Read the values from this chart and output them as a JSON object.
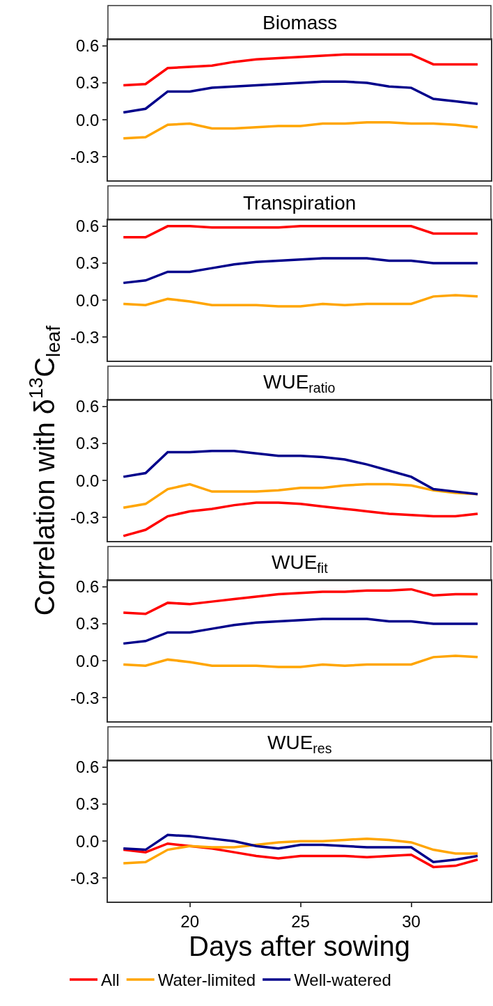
{
  "chart_data": [
    {
      "type": "line",
      "title": "Biomass",
      "x": [
        17,
        18,
        19,
        20,
        21,
        22,
        23,
        24,
        25,
        26,
        27,
        28,
        29,
        30,
        31,
        32,
        33
      ],
      "xlim": [
        16.3,
        33.6
      ],
      "ylim": [
        -0.49,
        0.65
      ],
      "yticks": [
        {
          "value": -0.3,
          "label": "-0.3"
        },
        {
          "value": 0,
          "label": "0.0"
        },
        {
          "value": 0.3,
          "label": "0.3"
        },
        {
          "value": 0.6,
          "label": "0.6"
        }
      ],
      "xticks": [
        20,
        25,
        30
      ],
      "tick_labels": "y",
      "grid": false,
      "legend": "bottom",
      "marker": "none",
      "line_style": "solid",
      "series": [
        {
          "name": "All",
          "color": "#ff0000",
          "values": [
            0.28,
            0.29,
            0.42,
            0.43,
            0.44,
            0.47,
            0.49,
            0.5,
            0.51,
            0.52,
            0.53,
            0.53,
            0.53,
            0.53,
            0.45,
            0.45,
            0.45
          ]
        },
        {
          "name": "Water-limited",
          "color": "#ffa500",
          "values": [
            -0.15,
            -0.14,
            -0.04,
            -0.03,
            -0.07,
            -0.07,
            -0.06,
            -0.05,
            -0.05,
            -0.03,
            -0.03,
            -0.02,
            -0.02,
            -0.03,
            -0.03,
            -0.04,
            -0.06
          ]
        },
        {
          "name": "Well-watered",
          "color": "#00008b",
          "values": [
            0.06,
            0.09,
            0.23,
            0.23,
            0.26,
            0.27,
            0.28,
            0.29,
            0.3,
            0.31,
            0.31,
            0.3,
            0.27,
            0.26,
            0.17,
            0.15,
            0.13
          ]
        }
      ]
    },
    {
      "type": "line",
      "title": "Transpiration",
      "x": [
        17,
        18,
        19,
        20,
        21,
        22,
        23,
        24,
        25,
        26,
        27,
        28,
        29,
        30,
        31,
        32,
        33
      ],
      "xlim": [
        16.3,
        33.6
      ],
      "ylim": [
        -0.49,
        0.65
      ],
      "yticks": [
        {
          "value": -0.3,
          "label": "-0.3"
        },
        {
          "value": 0,
          "label": "0.0"
        },
        {
          "value": 0.3,
          "label": "0.3"
        },
        {
          "value": 0.6,
          "label": "0.6"
        }
      ],
      "xticks": [
        20,
        25,
        30
      ],
      "tick_labels": "y",
      "grid": false,
      "legend": "bottom",
      "marker": "none",
      "line_style": "solid",
      "series": [
        {
          "name": "All",
          "color": "#ff0000",
          "values": [
            0.51,
            0.51,
            0.6,
            0.6,
            0.59,
            0.59,
            0.59,
            0.59,
            0.6,
            0.6,
            0.6,
            0.6,
            0.6,
            0.6,
            0.54,
            0.54,
            0.54
          ]
        },
        {
          "name": "Water-limited",
          "color": "#ffa500",
          "values": [
            -0.03,
            -0.04,
            0.01,
            -0.01,
            -0.04,
            -0.04,
            -0.04,
            -0.05,
            -0.05,
            -0.03,
            -0.04,
            -0.03,
            -0.03,
            -0.03,
            0.03,
            0.04,
            0.03
          ]
        },
        {
          "name": "Well-watered",
          "color": "#00008b",
          "values": [
            0.14,
            0.16,
            0.23,
            0.23,
            0.26,
            0.29,
            0.31,
            0.32,
            0.33,
            0.34,
            0.34,
            0.34,
            0.32,
            0.32,
            0.3,
            0.3,
            0.3
          ]
        }
      ]
    },
    {
      "type": "line",
      "title": "WUE$_{ratio}$",
      "ylabel": "Correlation with δ$^{13}$C$_{leaf}$",
      "x": [
        17,
        18,
        19,
        20,
        21,
        22,
        23,
        24,
        25,
        26,
        27,
        28,
        29,
        30,
        31,
        32,
        33
      ],
      "xlim": [
        16.3,
        33.6
      ],
      "ylim": [
        -0.49,
        0.65
      ],
      "yticks": [
        {
          "value": -0.3,
          "label": "-0.3"
        },
        {
          "value": 0,
          "label": "0.0"
        },
        {
          "value": 0.3,
          "label": "0.3"
        },
        {
          "value": 0.6,
          "label": "0.6"
        }
      ],
      "xticks": [
        20,
        25,
        30
      ],
      "tick_labels": "y",
      "grid": false,
      "legend": "bottom",
      "marker": "none",
      "line_style": "solid",
      "series": [
        {
          "name": "All",
          "color": "#ff0000",
          "values": [
            -0.45,
            -0.4,
            -0.29,
            -0.25,
            -0.23,
            -0.2,
            -0.18,
            -0.18,
            -0.19,
            -0.21,
            -0.23,
            -0.25,
            -0.27,
            -0.28,
            -0.29,
            -0.29,
            -0.27
          ]
        },
        {
          "name": "Water-limited",
          "color": "#ffa500",
          "values": [
            -0.22,
            -0.19,
            -0.07,
            -0.03,
            -0.09,
            -0.09,
            -0.09,
            -0.08,
            -0.06,
            -0.06,
            -0.04,
            -0.03,
            -0.03,
            -0.04,
            -0.08,
            -0.1,
            -0.11
          ]
        },
        {
          "name": "Well-watered",
          "color": "#00008b",
          "values": [
            0.03,
            0.06,
            0.23,
            0.23,
            0.24,
            0.24,
            0.22,
            0.2,
            0.2,
            0.19,
            0.17,
            0.13,
            0.08,
            0.03,
            -0.07,
            -0.09,
            -0.11
          ]
        }
      ]
    },
    {
      "type": "line",
      "title": "WUE$_{fit}$",
      "x": [
        17,
        18,
        19,
        20,
        21,
        22,
        23,
        24,
        25,
        26,
        27,
        28,
        29,
        30,
        31,
        32,
        33
      ],
      "xlim": [
        16.3,
        33.6
      ],
      "ylim": [
        -0.49,
        0.65
      ],
      "yticks": [
        {
          "value": -0.3,
          "label": "-0.3"
        },
        {
          "value": 0,
          "label": "0.0"
        },
        {
          "value": 0.3,
          "label": "0.3"
        },
        {
          "value": 0.6,
          "label": "0.6"
        }
      ],
      "xticks": [
        20,
        25,
        30
      ],
      "tick_labels": "y",
      "grid": false,
      "legend": "bottom",
      "marker": "none",
      "line_style": "solid",
      "series": [
        {
          "name": "All",
          "color": "#ff0000",
          "values": [
            0.39,
            0.38,
            0.47,
            0.46,
            0.48,
            0.5,
            0.52,
            0.54,
            0.55,
            0.56,
            0.56,
            0.57,
            0.57,
            0.58,
            0.53,
            0.54,
            0.54
          ]
        },
        {
          "name": "Water-limited",
          "color": "#ffa500",
          "values": [
            -0.03,
            -0.04,
            0.01,
            -0.01,
            -0.04,
            -0.04,
            -0.04,
            -0.05,
            -0.05,
            -0.03,
            -0.04,
            -0.03,
            -0.03,
            -0.03,
            0.03,
            0.04,
            0.03
          ]
        },
        {
          "name": "Well-watered",
          "color": "#00008b",
          "values": [
            0.14,
            0.16,
            0.23,
            0.23,
            0.26,
            0.29,
            0.31,
            0.32,
            0.33,
            0.34,
            0.34,
            0.34,
            0.32,
            0.32,
            0.3,
            0.3,
            0.3
          ]
        }
      ]
    },
    {
      "type": "line",
      "title": "WUE$_{res}$",
      "xlabel": "Days after sowing",
      "x": [
        17,
        18,
        19,
        20,
        21,
        22,
        23,
        24,
        25,
        26,
        27,
        28,
        29,
        30,
        31,
        32,
        33
      ],
      "xlim": [
        16.3,
        33.6
      ],
      "ylim": [
        -0.49,
        0.65
      ],
      "yticks": [
        {
          "value": -0.3,
          "label": "-0.3"
        },
        {
          "value": 0,
          "label": "0.0"
        },
        {
          "value": 0.3,
          "label": "0.3"
        },
        {
          "value": 0.6,
          "label": "0.6"
        }
      ],
      "xticks": [
        20,
        25,
        30
      ],
      "grid": false,
      "legend": "bottom",
      "marker": "none",
      "line_style": "solid",
      "series": [
        {
          "name": "All",
          "color": "#ff0000",
          "values": [
            -0.07,
            -0.09,
            -0.02,
            -0.04,
            -0.06,
            -0.09,
            -0.12,
            -0.14,
            -0.12,
            -0.12,
            -0.12,
            -0.13,
            -0.12,
            -0.11,
            -0.21,
            -0.2,
            -0.15
          ]
        },
        {
          "name": "Water-limited",
          "color": "#ffa500",
          "values": [
            -0.18,
            -0.17,
            -0.07,
            -0.04,
            -0.05,
            -0.05,
            -0.03,
            -0.01,
            0.0,
            0.0,
            0.01,
            0.02,
            0.01,
            -0.01,
            -0.07,
            -0.1,
            -0.1
          ]
        },
        {
          "name": "Well-watered",
          "color": "#00008b",
          "values": [
            -0.06,
            -0.07,
            0.05,
            0.04,
            0.02,
            0.0,
            -0.04,
            -0.06,
            -0.03,
            -0.03,
            -0.04,
            -0.05,
            -0.05,
            -0.05,
            -0.17,
            -0.15,
            -0.12
          ]
        }
      ]
    }
  ]
}
